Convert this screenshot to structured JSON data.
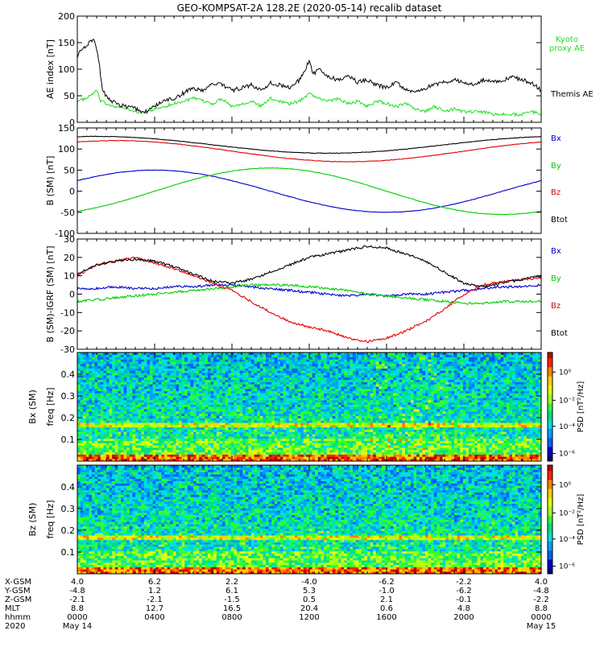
{
  "title": "GEO-KOMPSAT-2A 128.2E (2020-05-14) recalib dataset",
  "colors": {
    "black": "#000000",
    "red": "#e00000",
    "green": "#00cc00",
    "blue": "#0000cc",
    "kyoto": "#22dd22"
  },
  "chart_data": [
    {
      "type": "line",
      "ylabel": "AE index [nT]",
      "ylim": [
        0,
        200
      ],
      "yticks": [
        0,
        50,
        100,
        150,
        200
      ],
      "xlim": [
        0,
        24
      ],
      "series": [
        {
          "name": "Kyoto proxy AE",
          "color": "#22dd22",
          "x": [
            0,
            0.5,
            1,
            1.2,
            1.5,
            2,
            2.5,
            3,
            3.5,
            4,
            4.5,
            5,
            5.5,
            6,
            6.5,
            7,
            7.5,
            8,
            8.5,
            9,
            9.5,
            10,
            10.5,
            11,
            11.5,
            12,
            12.5,
            13,
            13.5,
            14,
            14.5,
            15,
            15.5,
            16,
            16.5,
            17,
            17.5,
            18,
            18.5,
            19,
            19.5,
            20,
            20.5,
            21,
            21.5,
            22,
            22.5,
            23,
            23.5,
            24
          ],
          "y": [
            40,
            45,
            60,
            40,
            35,
            30,
            25,
            20,
            18,
            25,
            30,
            35,
            40,
            45,
            40,
            35,
            45,
            30,
            35,
            40,
            30,
            45,
            40,
            35,
            40,
            55,
            45,
            40,
            45,
            35,
            40,
            30,
            40,
            35,
            30,
            35,
            25,
            20,
            30,
            20,
            25,
            20,
            20,
            20,
            15,
            15,
            15,
            15,
            20,
            15
          ]
        },
        {
          "name": "Themis AE",
          "color": "#000000",
          "x": [
            0,
            0.3,
            0.6,
            0.9,
            1.1,
            1.3,
            1.6,
            2,
            2.5,
            3,
            3.5,
            4,
            4.5,
            5,
            5.5,
            6,
            6.5,
            7,
            7.5,
            8,
            8.5,
            9,
            9.5,
            10,
            10.5,
            11,
            11.5,
            12,
            12.2,
            12.5,
            13,
            13.5,
            14,
            14.5,
            15,
            15.5,
            16,
            16.5,
            17,
            17.5,
            18,
            18.5,
            19,
            19.5,
            20,
            20.5,
            21,
            21.5,
            22,
            22.5,
            23,
            23.5,
            24
          ],
          "y": [
            125,
            140,
            150,
            155,
            120,
            60,
            45,
            35,
            30,
            25,
            20,
            30,
            40,
            45,
            55,
            65,
            60,
            75,
            70,
            60,
            65,
            70,
            60,
            75,
            70,
            65,
            80,
            115,
            90,
            100,
            85,
            80,
            90,
            75,
            80,
            70,
            65,
            75,
            60,
            55,
            65,
            70,
            75,
            80,
            75,
            70,
            80,
            75,
            80,
            85,
            80,
            75,
            60
          ]
        }
      ]
    },
    {
      "type": "line",
      "ylabel": "B (SM) [nT]",
      "ylim": [
        -100,
        150
      ],
      "yticks": [
        -100,
        -50,
        0,
        50,
        100,
        150
      ],
      "xlim": [
        0,
        24
      ],
      "series": [
        {
          "name": "Bx",
          "color": "#0000cc",
          "model": "cos",
          "amp": 50,
          "offset": 0,
          "phase": 4
        },
        {
          "name": "By",
          "color": "#00cc00",
          "model": "cos",
          "amp": 55,
          "offset": 0,
          "phase": 10
        },
        {
          "name": "Bz",
          "color": "#e00000",
          "model": "cos",
          "amp": 25,
          "offset": 95,
          "phase": 2
        },
        {
          "name": "Btot",
          "color": "#000000",
          "model": "cos",
          "amp": 20,
          "offset": 110,
          "phase": 1
        }
      ]
    },
    {
      "type": "line",
      "ylabel": "B (SM)-IGRF (SM) [nT]",
      "ylim": [
        -30,
        30
      ],
      "yticks": [
        -30,
        -20,
        -10,
        0,
        10,
        20,
        30
      ],
      "xlim": [
        0,
        24
      ],
      "series": [
        {
          "name": "Bx",
          "color": "#0000cc",
          "x": [
            0,
            1,
            2,
            3,
            4,
            5,
            6,
            7,
            8,
            9,
            10,
            11,
            12,
            13,
            14,
            15,
            16,
            17,
            18,
            19,
            20,
            21,
            22,
            23,
            24
          ],
          "y": [
            3,
            3,
            4,
            3,
            3,
            4,
            4,
            5,
            5,
            4,
            3,
            2,
            1,
            0,
            -1,
            0,
            -1,
            0,
            0,
            1,
            2,
            3,
            4,
            4,
            5
          ]
        },
        {
          "name": "By",
          "color": "#00cc00",
          "x": [
            0,
            1,
            2,
            3,
            4,
            5,
            6,
            7,
            8,
            9,
            10,
            11,
            12,
            13,
            14,
            15,
            16,
            17,
            18,
            19,
            20,
            21,
            22,
            23,
            24
          ],
          "y": [
            -4,
            -3,
            -2,
            -1,
            0,
            1,
            2,
            3,
            4,
            5,
            5,
            5,
            4,
            3,
            2,
            0,
            -1,
            -2,
            -3,
            -4,
            -5,
            -5,
            -4,
            -4,
            -4
          ]
        },
        {
          "name": "Bz",
          "color": "#e00000",
          "x": [
            0,
            1,
            2,
            3,
            4,
            5,
            6,
            7,
            8,
            9,
            10,
            11,
            12,
            13,
            14,
            15,
            16,
            17,
            18,
            19,
            20,
            21,
            22,
            23,
            24
          ],
          "y": [
            10,
            16,
            18,
            20,
            17,
            14,
            10,
            6,
            2,
            -4,
            -10,
            -15,
            -18,
            -20,
            -24,
            -26,
            -24,
            -20,
            -15,
            -8,
            0,
            5,
            7,
            8,
            9
          ]
        },
        {
          "name": "Btot",
          "color": "#000000",
          "x": [
            0,
            1,
            2,
            3,
            4,
            5,
            6,
            7,
            8,
            9,
            10,
            11,
            12,
            13,
            14,
            15,
            16,
            17,
            18,
            19,
            20,
            21,
            22,
            23,
            24
          ],
          "y": [
            11,
            16,
            18,
            19,
            18,
            15,
            11,
            7,
            6,
            8,
            12,
            16,
            20,
            22,
            24,
            26,
            25,
            22,
            18,
            12,
            6,
            4,
            6,
            8,
            10
          ]
        }
      ]
    },
    {
      "type": "heatmap",
      "title": "Bx (SM)",
      "ylabel": "freq [Hz]",
      "ylim": [
        0,
        0.5
      ],
      "yticks": [
        0.1,
        0.2,
        0.3,
        0.4
      ],
      "colorbar_label": "PSD [nT²/Hz]",
      "colorbar_ticks": [
        "10⁰",
        "10⁻²",
        "10⁻⁴",
        "10⁻⁶"
      ]
    },
    {
      "type": "heatmap",
      "title": "Bz (SM)",
      "ylabel": "freq [Hz]",
      "ylim": [
        0,
        0.5
      ],
      "yticks": [
        0.1,
        0.2,
        0.3,
        0.4
      ],
      "colorbar_label": "PSD [nT²/Hz]",
      "colorbar_ticks": [
        "10⁰",
        "10⁻²",
        "10⁻⁴",
        "10⁻⁶"
      ]
    }
  ],
  "bottom_axis": {
    "row_labels": [
      "X-GSM",
      "Y-GSM",
      "Z-GSM",
      "MLT",
      "hhmm",
      "2020"
    ],
    "columns": [
      [
        "4.0",
        "-4.8",
        "-2.1",
        "8.8",
        "0000",
        "May 14"
      ],
      [
        "6.2",
        "1.2",
        "-2.1",
        "12.7",
        "0400",
        ""
      ],
      [
        "2.2",
        "6.1",
        "-1.5",
        "16.5",
        "0800",
        ""
      ],
      [
        "-4.0",
        "5.3",
        "0.5",
        "20.4",
        "1200",
        ""
      ],
      [
        "-6.2",
        "-1.0",
        "2.1",
        "0.6",
        "1600",
        ""
      ],
      [
        "-2.2",
        "-6.2",
        "-0.1",
        "4.8",
        "2000",
        ""
      ],
      [
        "4.0",
        "-4.8",
        "-2.2",
        "8.8",
        "0000",
        "May 15"
      ]
    ]
  }
}
